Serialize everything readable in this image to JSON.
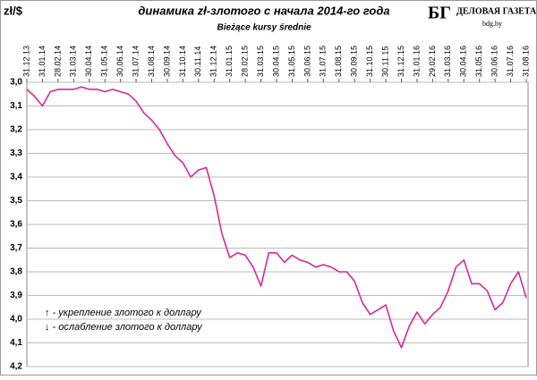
{
  "chart_data": {
    "type": "line",
    "title": "динамика  zł-злотого  с начала 2014-го года",
    "subtitle": "Bieżące kursy średnie",
    "y_label": "zł/$",
    "logo": {
      "mark": "БГ",
      "name": "ДЕЛОВАЯ ГАЗЕТА",
      "site": "bdg.by"
    },
    "annotations": [
      "↑ - укрепление злотого к доллару",
      "↓ - ослабление злотого к доллару"
    ],
    "categories": [
      "31.12.13",
      null,
      "31.01.14",
      null,
      "28.02.14",
      null,
      "31.03.14",
      null,
      "30.04.14",
      null,
      "31.05.14",
      null,
      "30.06.14",
      null,
      "31.07.14",
      null,
      "31.08.14",
      null,
      "30.09.14",
      null,
      "31.10.14",
      null,
      "30.11.14",
      null,
      "31.12.14",
      null,
      "31.01.15",
      null,
      "28.02.15",
      null,
      "31.03.15",
      null,
      "30.04.15",
      null,
      "31.05.15",
      null,
      "30.06.15",
      null,
      "31.07.15",
      null,
      "31.08.15",
      null,
      "30.09.15",
      null,
      "31.10.15",
      null,
      "30.11.15",
      null,
      "31.12.15",
      null,
      "31.01.16",
      null,
      "29.02.16",
      null,
      "31.03.16",
      null,
      "30.04.16",
      null,
      "31.05.16",
      null,
      "30.06.16",
      null,
      "31.07.16",
      null,
      "31.08.16"
    ],
    "series": [
      {
        "name": "zł/$",
        "color": "#d9269e",
        "values": [
          3.03,
          3.06,
          3.1,
          3.04,
          3.03,
          3.03,
          3.03,
          3.02,
          3.03,
          3.03,
          3.04,
          3.03,
          3.04,
          3.05,
          3.08,
          3.13,
          3.16,
          3.2,
          3.26,
          3.31,
          3.34,
          3.4,
          3.37,
          3.36,
          3.48,
          3.64,
          3.74,
          3.72,
          3.73,
          3.78,
          3.86,
          3.72,
          3.72,
          3.76,
          3.73,
          3.75,
          3.76,
          3.78,
          3.77,
          3.78,
          3.8,
          3.8,
          3.84,
          3.93,
          3.98,
          3.96,
          3.94,
          4.05,
          4.12,
          4.03,
          3.97,
          4.02,
          3.98,
          3.95,
          3.88,
          3.78,
          3.75,
          3.85,
          3.85,
          3.88,
          3.96,
          3.93,
          3.85,
          3.8,
          3.91
        ]
      }
    ],
    "ylim": [
      3.0,
      4.2
    ],
    "y_inverted": true,
    "yticks": [
      {
        "value": 3.0,
        "label": "3,0"
      },
      {
        "value": 3.1,
        "label": "3,1"
      },
      {
        "value": 3.2,
        "label": "3,2"
      },
      {
        "value": 3.3,
        "label": "3,3"
      },
      {
        "value": 3.4,
        "label": "3,4"
      },
      {
        "value": 3.5,
        "label": "3,5"
      },
      {
        "value": 3.6,
        "label": "3,6"
      },
      {
        "value": 3.7,
        "label": "3,7"
      },
      {
        "value": 3.8,
        "label": "3,8"
      },
      {
        "value": 3.9,
        "label": "3,9"
      },
      {
        "value": 4.0,
        "label": "4,0"
      },
      {
        "value": 4.1,
        "label": "4,1"
      },
      {
        "value": 4.2,
        "label": "4,2"
      }
    ],
    "grid": true
  }
}
